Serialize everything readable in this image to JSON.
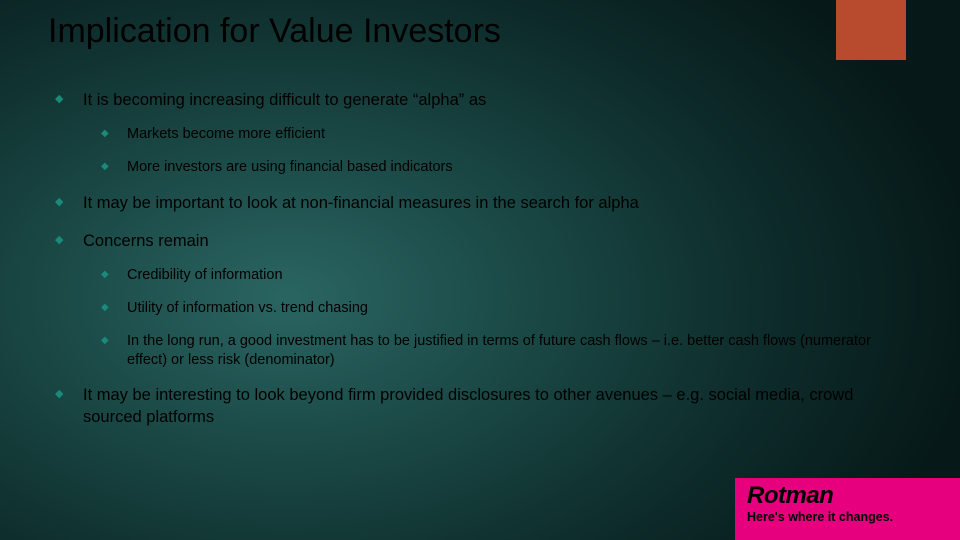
{
  "title": "Implication for Value Investors",
  "accent_color": "#b84a2e",
  "bullet_color": "#1a8a7a",
  "bullets": [
    {
      "text": "It is becoming increasing difficult to generate “alpha” as",
      "children": [
        {
          "text": "Markets become more efficient"
        },
        {
          "text": "More investors are using financial based indicators"
        }
      ]
    },
    {
      "text": "It may be important to look at non-financial measures in the search for alpha",
      "children": []
    },
    {
      "text": "Concerns remain",
      "children": [
        {
          "text": "Credibility of information"
        },
        {
          "text": "Utility of information vs. trend chasing"
        },
        {
          "text": "In the long run, a good investment has to be justified in terms of future cash flows – i.e. better cash flows (numerator effect) or less risk (denominator)"
        }
      ]
    },
    {
      "text": "It may be interesting to look beyond firm provided disclosures to other avenues – e.g. social media, crowd sourced platforms",
      "children": []
    }
  ],
  "logo": {
    "name": "Rotman",
    "tagline": "Here's where it changes.",
    "bg": "#e6007e"
  }
}
